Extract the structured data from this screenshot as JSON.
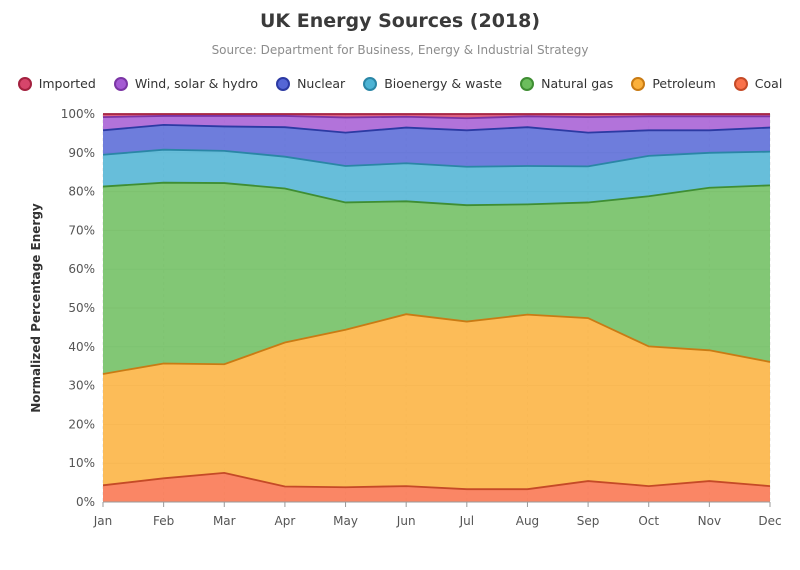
{
  "chart_data": {
    "type": "area",
    "stacked": true,
    "normalized": true,
    "title": "UK Energy Sources (2018)",
    "subtitle": "Source: Department for Business, Energy & Industrial Strategy",
    "xlabel": "",
    "ylabel": "Normalized Percentage Energy",
    "ylim": [
      0,
      100
    ],
    "grid": true,
    "legend_position": "top",
    "y_ticks": [
      "0%",
      "10%",
      "20%",
      "30%",
      "40%",
      "50%",
      "60%",
      "70%",
      "80%",
      "90%",
      "100%"
    ],
    "categories": [
      "Jan",
      "Feb",
      "Mar",
      "Apr",
      "May",
      "Jun",
      "Jul",
      "Aug",
      "Sep",
      "Oct",
      "Nov",
      "Dec"
    ],
    "series": [
      {
        "name": "Coal",
        "color": "#f9714a",
        "values": [
          4.3,
          6.1,
          7.5,
          4.0,
          3.8,
          4.1,
          3.3,
          3.3,
          5.4,
          4.1,
          5.4,
          4.1
        ]
      },
      {
        "name": "Petroleum",
        "color": "#fbb03b",
        "values": [
          28.7,
          29.6,
          28.0,
          37.1,
          40.6,
          44.3,
          43.2,
          45.0,
          42.0,
          36.0,
          33.7,
          32.0
        ]
      },
      {
        "name": "Natural gas",
        "color": "#6cbd5d",
        "values": [
          48.3,
          46.6,
          46.7,
          39.7,
          32.8,
          29.1,
          30.0,
          28.4,
          29.8,
          38.7,
          41.9,
          45.5
        ]
      },
      {
        "name": "Bioenergy & waste",
        "color": "#4cb3d4",
        "values": [
          8.2,
          8.5,
          8.3,
          8.2,
          9.4,
          9.8,
          9.9,
          9.9,
          9.3,
          10.4,
          9.0,
          8.7
        ]
      },
      {
        "name": "Nuclear",
        "color": "#5566d6",
        "values": [
          6.3,
          6.4,
          6.3,
          7.6,
          8.6,
          9.2,
          9.4,
          10.0,
          8.7,
          6.6,
          5.8,
          6.2
        ]
      },
      {
        "name": "Wind, solar & hydro",
        "color": "#a45ad3",
        "values": [
          3.4,
          2.3,
          2.7,
          2.9,
          3.9,
          2.8,
          3.1,
          2.8,
          4.0,
          3.6,
          3.6,
          2.9
        ]
      },
      {
        "name": "Imported",
        "color": "#d6456b",
        "values": [
          0.8,
          0.5,
          0.5,
          0.5,
          0.9,
          0.7,
          1.1,
          0.6,
          0.8,
          0.6,
          0.6,
          0.6
        ]
      }
    ],
    "legend_order": [
      "Imported",
      "Wind, solar & hydro",
      "Nuclear",
      "Bioenergy & waste",
      "Natural gas",
      "Petroleum",
      "Coal"
    ],
    "line_colors": {
      "Coal": "#c54a27",
      "Petroleum": "#c97b14",
      "Natural gas": "#3f8e33",
      "Bioenergy & waste": "#2a86a6",
      "Nuclear": "#2c3aa3",
      "Wind, solar & hydro": "#7b35a5",
      "Imported": "#a3213f"
    }
  }
}
